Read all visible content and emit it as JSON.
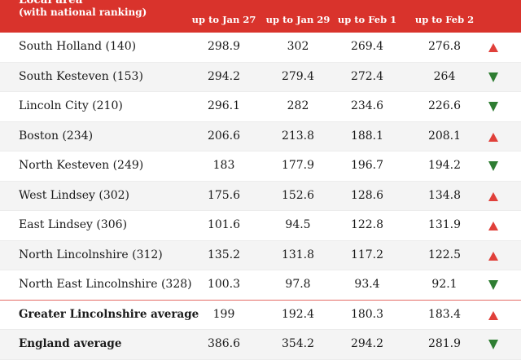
{
  "header": {
    "area_title": "Local area",
    "area_subtitle": "(with national ranking)",
    "columns": [
      "up to Jan 27",
      "up to Jan 29",
      "up to Feb 1",
      "up to Feb 2"
    ]
  },
  "rows": [
    {
      "area": "South Holland (140)",
      "values": [
        "298.9",
        "302",
        "269.4",
        "276.8"
      ],
      "trend": "up"
    },
    {
      "area": "South Kesteven (153)",
      "values": [
        "294.2",
        "279.4",
        "272.4",
        "264"
      ],
      "trend": "down"
    },
    {
      "area": "Lincoln City (210)",
      "values": [
        "296.1",
        "282",
        "234.6",
        "226.6"
      ],
      "trend": "down"
    },
    {
      "area": "Boston (234)",
      "values": [
        "206.6",
        "213.8",
        "188.1",
        "208.1"
      ],
      "trend": "up"
    },
    {
      "area": "North Kesteven (249)",
      "values": [
        "183",
        "177.9",
        "196.7",
        "194.2"
      ],
      "trend": "down"
    },
    {
      "area": "West Lindsey (302)",
      "values": [
        "175.6",
        "152.6",
        "128.6",
        "134.8"
      ],
      "trend": "up"
    },
    {
      "area": "East Lindsey (306)",
      "values": [
        "101.6",
        "94.5",
        "122.8",
        "131.9"
      ],
      "trend": "up"
    },
    {
      "area": "North Lincolnshire (312)",
      "values": [
        "135.2",
        "131.8",
        "117.2",
        "122.5"
      ],
      "trend": "up"
    },
    {
      "area": "North East Lincolnshire (328)",
      "values": [
        "100.3",
        "97.8",
        "93.4",
        "92.1"
      ],
      "trend": "down"
    }
  ],
  "summary": [
    {
      "area": "Greater Lincolnshire average",
      "values": [
        "199",
        "192.4",
        "180.3",
        "183.4"
      ],
      "trend": "up"
    },
    {
      "area": "England average",
      "values": [
        "386.6",
        "354.2",
        "294.2",
        "281.9"
      ],
      "trend": "down"
    }
  ],
  "colors": {
    "header_bg": "#d9332c",
    "up": "#e0403a",
    "down": "#2e7d32"
  }
}
